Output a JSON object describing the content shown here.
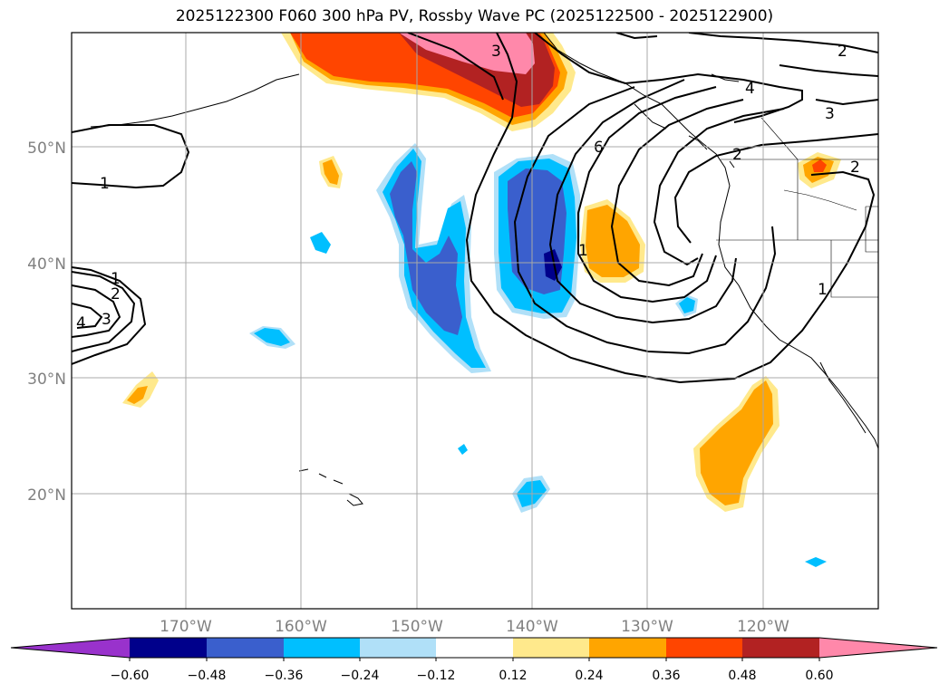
{
  "title": "2025122300 F060 300 hPa PV, Rossby Wave PC (2025122500 - 2025122900)",
  "lon_labels": [
    "170°W",
    "160°W",
    "150°W",
    "140°W",
    "130°W",
    "120°W"
  ],
  "lat_labels": [
    "50°N",
    "40°N",
    "30°N",
    "20°N"
  ],
  "extent": {
    "lon_min": -180,
    "lon_max": -110,
    "lat_min": 10,
    "lat_max": 60
  },
  "colorbar": {
    "ticks": [
      "−0.60",
      "−0.48",
      "−0.36",
      "−0.24",
      "−0.12",
      "0.12",
      "0.24",
      "0.36",
      "0.48",
      "0.60"
    ],
    "colors": [
      "#9932cc",
      "#00008b",
      "#3a5fcd",
      "#00bfff",
      "#b0e0f8",
      "#ffffff",
      "#ffe98c",
      "#ffa500",
      "#ff4500",
      "#b22222",
      "#ff88aa"
    ]
  },
  "colors": {
    "pink": "#ff88aa",
    "darkred": "#b22222",
    "red": "#ff4500",
    "orange": "#ffa500",
    "yellow": "#ffe98c",
    "lightblue": "#b0e0f8",
    "cyan": "#00bfff",
    "blue": "#3a5fcd",
    "navy": "#00008b"
  },
  "contour_labels": [
    "1",
    "1",
    "2",
    "3",
    "4",
    "3",
    "6",
    "4",
    "3",
    "2",
    "2",
    "2",
    "1",
    "1"
  ]
}
